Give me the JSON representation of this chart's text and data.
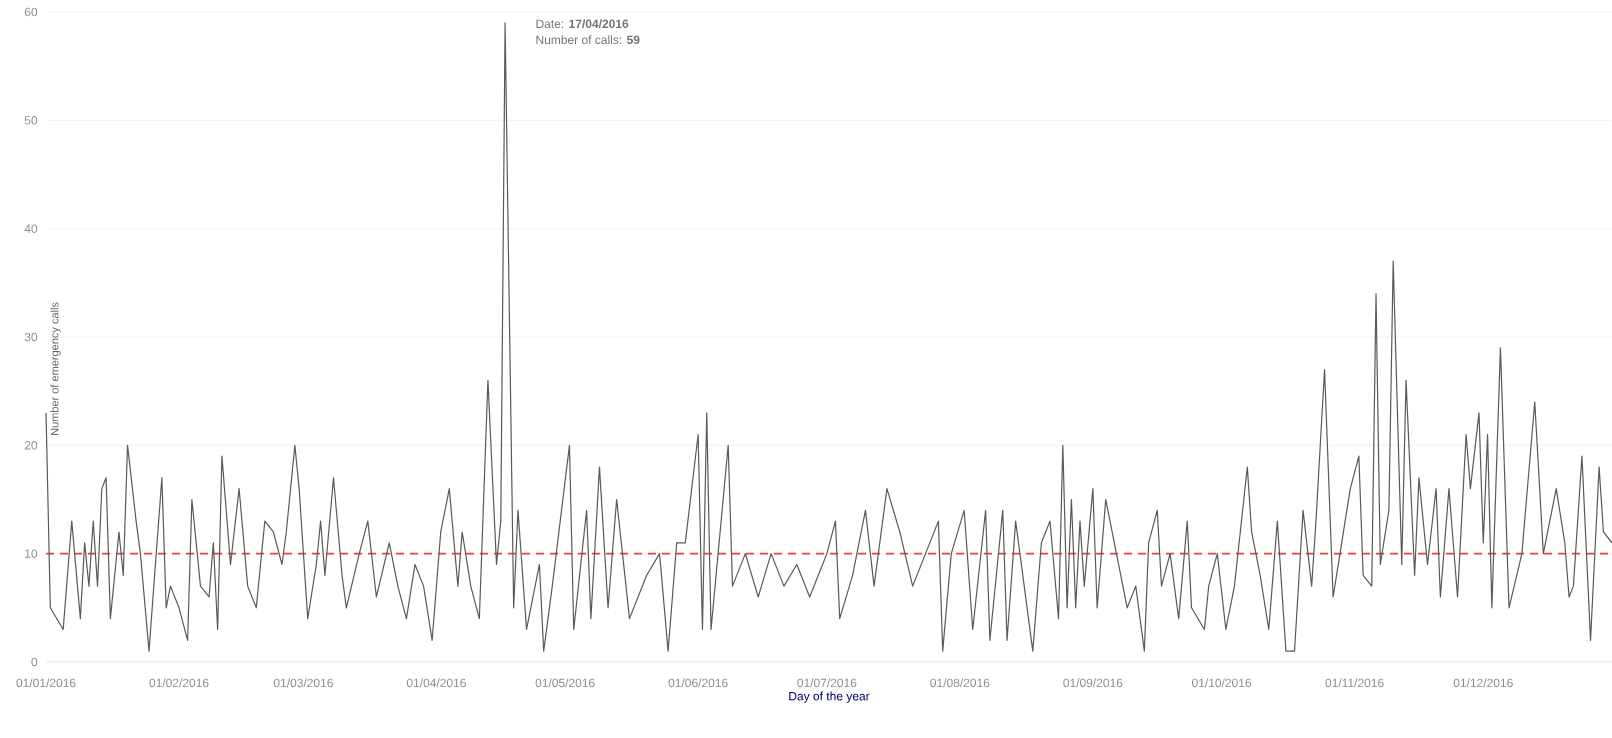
{
  "chart_data": {
    "type": "line",
    "xlabel": "Day of the year",
    "ylabel": "Number of emergency calls",
    "x": [
      "2016-01-01",
      "2016-01-02",
      "2016-01-05",
      "2016-01-07",
      "2016-01-09",
      "2016-01-10",
      "2016-01-11",
      "2016-01-12",
      "2016-01-13",
      "2016-01-14",
      "2016-01-15",
      "2016-01-16",
      "2016-01-18",
      "2016-01-19",
      "2016-01-20",
      "2016-01-22",
      "2016-01-23",
      "2016-01-25",
      "2016-01-28",
      "2016-01-29",
      "2016-01-30",
      "2016-02-01",
      "2016-02-03",
      "2016-02-04",
      "2016-02-06",
      "2016-02-08",
      "2016-02-09",
      "2016-02-10",
      "2016-02-11",
      "2016-02-13",
      "2016-02-15",
      "2016-02-17",
      "2016-02-19",
      "2016-02-21",
      "2016-02-23",
      "2016-02-25",
      "2016-02-26",
      "2016-02-28",
      "2016-02-29",
      "2016-03-02",
      "2016-03-04",
      "2016-03-05",
      "2016-03-06",
      "2016-03-08",
      "2016-03-10",
      "2016-03-11",
      "2016-03-14",
      "2016-03-16",
      "2016-03-18",
      "2016-03-21",
      "2016-03-23",
      "2016-03-25",
      "2016-03-27",
      "2016-03-29",
      "2016-03-31",
      "2016-04-02",
      "2016-04-04",
      "2016-04-06",
      "2016-04-07",
      "2016-04-09",
      "2016-04-11",
      "2016-04-13",
      "2016-04-15",
      "2016-04-16",
      "2016-04-17",
      "2016-04-19",
      "2016-04-20",
      "2016-04-22",
      "2016-04-25",
      "2016-04-26",
      "2016-04-28",
      "2016-05-02",
      "2016-05-03",
      "2016-05-06",
      "2016-05-07",
      "2016-05-09",
      "2016-05-11",
      "2016-05-13",
      "2016-05-16",
      "2016-05-20",
      "2016-05-23",
      "2016-05-25",
      "2016-05-27",
      "2016-05-29",
      "2016-06-01",
      "2016-06-02",
      "2016-06-03",
      "2016-06-04",
      "2016-06-08",
      "2016-06-09",
      "2016-06-12",
      "2016-06-15",
      "2016-06-18",
      "2016-06-21",
      "2016-06-24",
      "2016-06-27",
      "2016-07-01",
      "2016-07-03",
      "2016-07-04",
      "2016-07-07",
      "2016-07-10",
      "2016-07-12",
      "2016-07-15",
      "2016-07-18",
      "2016-07-21",
      "2016-07-27",
      "2016-07-28",
      "2016-07-30",
      "2016-08-02",
      "2016-08-04",
      "2016-08-07",
      "2016-08-08",
      "2016-08-11",
      "2016-08-12",
      "2016-08-14",
      "2016-08-18",
      "2016-08-20",
      "2016-08-22",
      "2016-08-24",
      "2016-08-25",
      "2016-08-26",
      "2016-08-27",
      "2016-08-28",
      "2016-08-29",
      "2016-08-30",
      "2016-09-01",
      "2016-09-02",
      "2016-09-04",
      "2016-09-07",
      "2016-09-09",
      "2016-09-11",
      "2016-09-13",
      "2016-09-14",
      "2016-09-16",
      "2016-09-17",
      "2016-09-19",
      "2016-09-21",
      "2016-09-23",
      "2016-09-24",
      "2016-09-27",
      "2016-09-28",
      "2016-09-30",
      "2016-10-02",
      "2016-10-04",
      "2016-10-07",
      "2016-10-08",
      "2016-10-10",
      "2016-10-12",
      "2016-10-14",
      "2016-10-16",
      "2016-10-18",
      "2016-10-20",
      "2016-10-22",
      "2016-10-23",
      "2016-10-25",
      "2016-10-27",
      "2016-10-29",
      "2016-10-31",
      "2016-11-02",
      "2016-11-03",
      "2016-11-05",
      "2016-11-06",
      "2016-11-07",
      "2016-11-09",
      "2016-11-10",
      "2016-11-12",
      "2016-11-13",
      "2016-11-15",
      "2016-11-16",
      "2016-11-18",
      "2016-11-20",
      "2016-11-21",
      "2016-11-23",
      "2016-11-25",
      "2016-11-27",
      "2016-11-28",
      "2016-11-30",
      "2016-12-01",
      "2016-12-02",
      "2016-12-03",
      "2016-12-05",
      "2016-12-07",
      "2016-12-10",
      "2016-12-13",
      "2016-12-15",
      "2016-12-18",
      "2016-12-20",
      "2016-12-21",
      "2016-12-22",
      "2016-12-24",
      "2016-12-26",
      "2016-12-28",
      "2016-12-29",
      "2016-12-31"
    ],
    "values": [
      23,
      5,
      3,
      13,
      4,
      11,
      7,
      13,
      7,
      16,
      17,
      4,
      12,
      8,
      20,
      13,
      10,
      1,
      17,
      5,
      7,
      5,
      2,
      15,
      7,
      6,
      11,
      3,
      19,
      9,
      16,
      7,
      5,
      13,
      12,
      9,
      12,
      20,
      16,
      4,
      9,
      13,
      8,
      17,
      8,
      5,
      10,
      13,
      6,
      11,
      7,
      4,
      9,
      7,
      2,
      12,
      16,
      7,
      12,
      7,
      4,
      26,
      9,
      13,
      59,
      5,
      14,
      3,
      9,
      1,
      7,
      20,
      3,
      14,
      4,
      18,
      5,
      15,
      4,
      8,
      10,
      1,
      11,
      11,
      21,
      3,
      23,
      3,
      20,
      7,
      10,
      6,
      10,
      7,
      9,
      6,
      10,
      13,
      4,
      8,
      14,
      7,
      16,
      12,
      7,
      13,
      1,
      10,
      14,
      3,
      14,
      2,
      14,
      2,
      13,
      1,
      11,
      13,
      4,
      20,
      5,
      15,
      5,
      13,
      7,
      16,
      5,
      15,
      9,
      5,
      7,
      1,
      11,
      14,
      7,
      10,
      4,
      13,
      5,
      3,
      7,
      10,
      3,
      7,
      18,
      12,
      8,
      3,
      13,
      1,
      1,
      14,
      7,
      13,
      27,
      6,
      11,
      16,
      19,
      8,
      7,
      34,
      9,
      14,
      37,
      9,
      26,
      8,
      17,
      9,
      16,
      6,
      16,
      6,
      21,
      16,
      23,
      11,
      21,
      5,
      29,
      5,
      10,
      24,
      10,
      16,
      11,
      6,
      7,
      19,
      2,
      18,
      12,
      11
    ],
    "color": "#595959",
    "line_style": "solid",
    "xlim": [
      "2016-01-01",
      "2016-12-31"
    ],
    "xticks": [
      {
        "value": "2016-01-01",
        "label": "01/01/2016"
      },
      {
        "value": "2016-02-01",
        "label": "01/02/2016"
      },
      {
        "value": "2016-03-01",
        "label": "01/03/2016"
      },
      {
        "value": "2016-04-01",
        "label": "01/04/2016"
      },
      {
        "value": "2016-05-01",
        "label": "01/05/2016"
      },
      {
        "value": "2016-06-01",
        "label": "01/06/2016"
      },
      {
        "value": "2016-07-01",
        "label": "01/07/2016"
      },
      {
        "value": "2016-08-01",
        "label": "01/08/2016"
      },
      {
        "value": "2016-09-01",
        "label": "01/09/2016"
      },
      {
        "value": "2016-10-01",
        "label": "01/10/2016"
      },
      {
        "value": "2016-11-01",
        "label": "01/11/2016"
      },
      {
        "value": "2016-12-01",
        "label": "01/12/2016"
      }
    ],
    "ylim": [
      0,
      60
    ],
    "yticks": [
      0,
      10,
      20,
      30,
      40,
      50,
      60
    ],
    "grid": "y",
    "ref_lines": [
      {
        "axis": "y",
        "value": 10,
        "color": "#e8403a",
        "line_style": "dashed"
      }
    ],
    "annotations": [
      {
        "text": "Date: **17/04/2016**",
        "x": "2016-04-17",
        "y": 59
      },
      {
        "text": "Number of calls: **59**",
        "x": "2016-04-17",
        "y": 59
      }
    ]
  }
}
